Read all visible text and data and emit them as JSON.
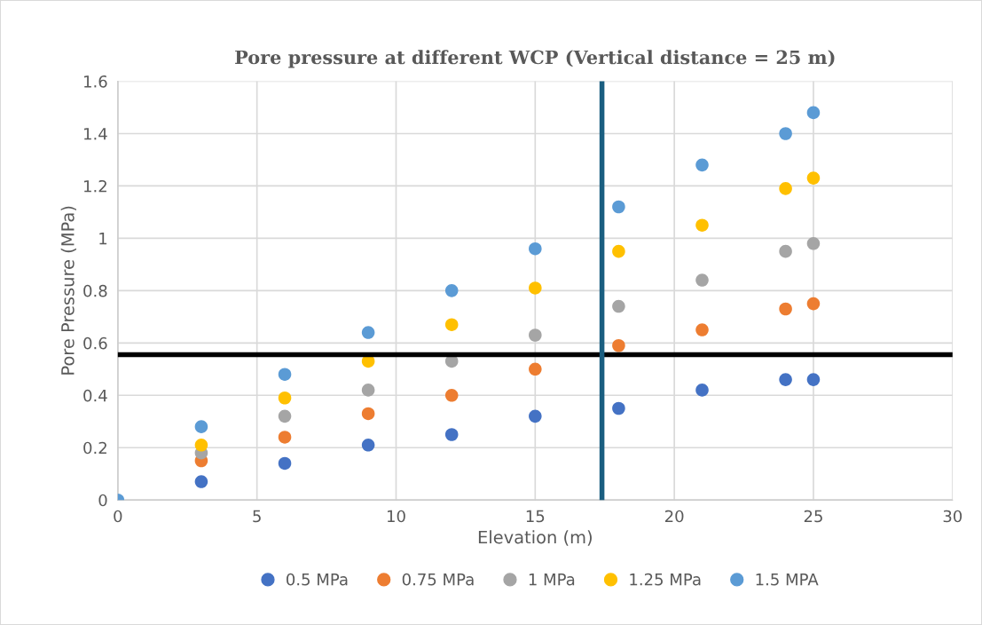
{
  "chart_data": {
    "type": "scatter",
    "title": "Pore pressure at different WCP (Vertical distance = 25 m)",
    "xlabel": "Elevation (m)",
    "ylabel": "Pore Pressure (MPa)",
    "x": [
      0,
      3,
      6,
      9,
      12,
      15,
      18,
      21,
      24,
      25
    ],
    "series": [
      {
        "name": "0.5 MPa",
        "color": "#4472c4",
        "values": [
          null,
          0.07,
          0.14,
          0.21,
          0.25,
          0.32,
          0.35,
          0.42,
          0.46,
          0.46
        ]
      },
      {
        "name": "0.75 MPa",
        "color": "#ed7d31",
        "values": [
          null,
          0.15,
          0.24,
          0.33,
          0.4,
          0.5,
          0.59,
          0.65,
          0.73,
          0.75
        ]
      },
      {
        "name": "1 MPa",
        "color": "#a5a5a5",
        "values": [
          null,
          0.18,
          0.32,
          0.42,
          0.53,
          0.63,
          0.74,
          0.84,
          0.95,
          0.98
        ]
      },
      {
        "name": "1.25 MPa",
        "color": "#ffc000",
        "values": [
          null,
          0.21,
          0.39,
          0.53,
          0.67,
          0.81,
          0.95,
          1.05,
          1.19,
          1.23
        ]
      },
      {
        "name": "1.5 MPA",
        "color": "#5b9bd5",
        "values": [
          0,
          0.28,
          0.48,
          0.64,
          0.8,
          0.96,
          1.12,
          1.28,
          1.4,
          1.48
        ]
      }
    ],
    "xlim": [
      0,
      30
    ],
    "xticks": [
      0,
      5,
      10,
      15,
      20,
      25,
      30
    ],
    "ylim": [
      0,
      1.6
    ],
    "yticks": [
      0,
      0.2,
      0.4,
      0.6,
      0.8,
      1,
      1.2,
      1.4,
      1.6
    ],
    "ref_lines": [
      {
        "axis": "y",
        "value": 0.555,
        "color": "#000000"
      },
      {
        "axis": "x",
        "value": 17.4,
        "color": "#1a5e80"
      }
    ],
    "grid": true,
    "legend": "bottom",
    "marker": "circle"
  }
}
